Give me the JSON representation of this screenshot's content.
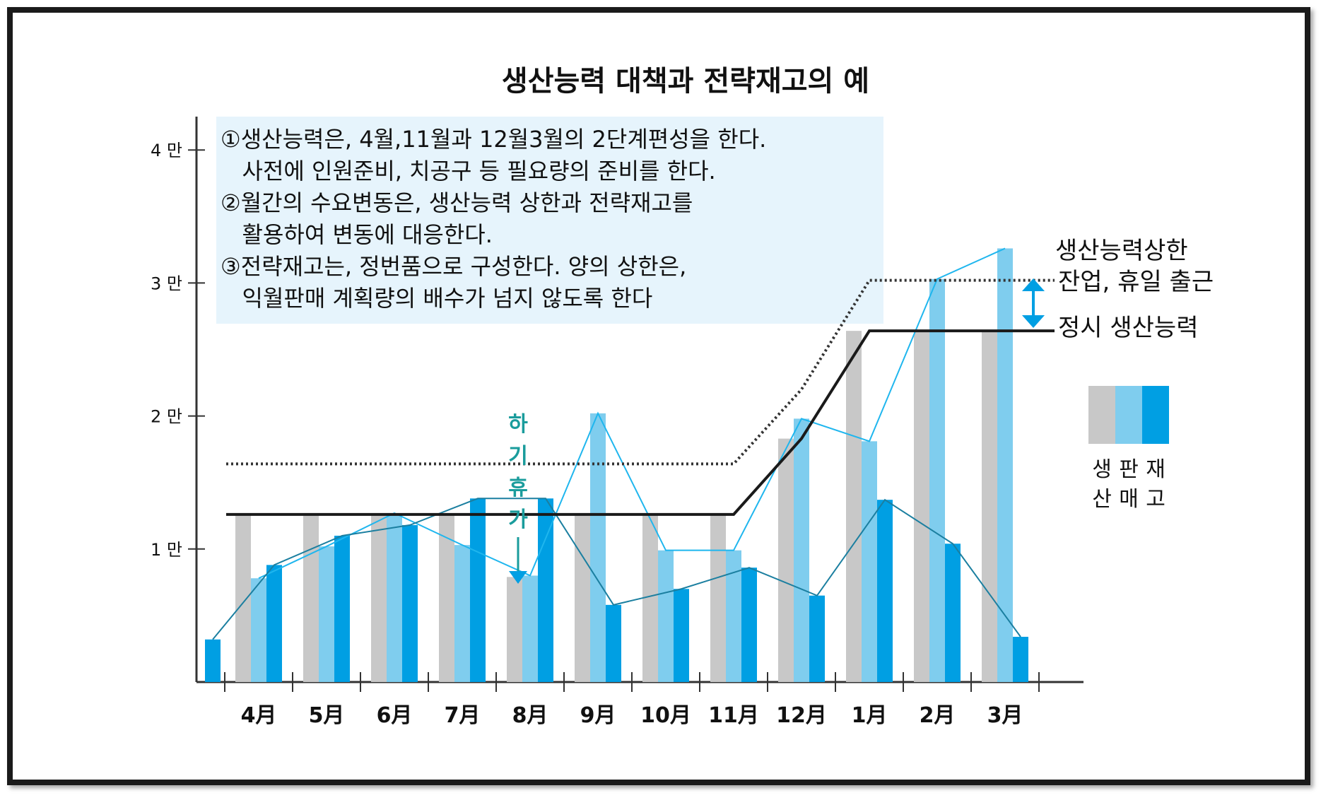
{
  "chart_data": {
    "type": "bar",
    "title": "생산능력 대책과 전략재고의 예",
    "categories": [
      "4月",
      "5月",
      "6月",
      "7月",
      "8月",
      "9月",
      "10月",
      "11月",
      "12月",
      "1月",
      "2月",
      "3月"
    ],
    "y_ticks": [
      "1 만",
      "2 만",
      "3 만",
      "4 만"
    ],
    "ylim": [
      0,
      42000
    ],
    "initial_inventory": 3200,
    "series": [
      {
        "name": "생산",
        "color": "#c8c8c8",
        "values": [
          12600,
          12600,
          12600,
          12600,
          7900,
          12600,
          12600,
          12600,
          18300,
          26400,
          26400,
          26400
        ]
      },
      {
        "name": "판매",
        "color": "#7fcdee",
        "values": [
          7800,
          10200,
          12700,
          10300,
          8000,
          20200,
          9900,
          9900,
          19800,
          18100,
          30300,
          32600
        ]
      },
      {
        "name": "재고",
        "color": "#009fe3",
        "values": [
          8800,
          11000,
          11800,
          13800,
          13800,
          5800,
          7000,
          8600,
          6500,
          13700,
          10400,
          3400
        ]
      }
    ],
    "regular_capacity": [
      12600,
      12600,
      12600,
      12600,
      12600,
      12600,
      12600,
      12600,
      18300,
      26400,
      26400,
      26400
    ],
    "capacity_upper_limit": [
      16400,
      16400,
      16400,
      16400,
      16400,
      16400,
      16400,
      16400,
      22000,
      30200,
      30200,
      30200
    ],
    "legend": {
      "labels_top": [
        "생",
        "판",
        "재"
      ],
      "labels_bottom": [
        "산",
        "매",
        "고"
      ]
    },
    "notes": [
      "①생산능력은, 4월,11월과 12월3월의 2단계편성을 한다.",
      "   사전에 인원준비, 치공구 등 필요량의 준비를 한다.",
      "②월간의 수요변동은, 생산능력 상한과 전략재고를",
      "   활용하여 변동에 대응한다.",
      "③전략재고는, 정번품으로 구성한다. 양의 상한은,",
      "   익월판매 계획량의 배수가 넘지 않도록 한다"
    ],
    "annotations": {
      "upper_limit_line1": "생산능력상한",
      "upper_limit_line2": "잔업, 휴일 출근",
      "regular_capacity": "정시 생산능력",
      "summer_vacation": [
        "하",
        "기",
        "휴",
        "가"
      ]
    }
  }
}
